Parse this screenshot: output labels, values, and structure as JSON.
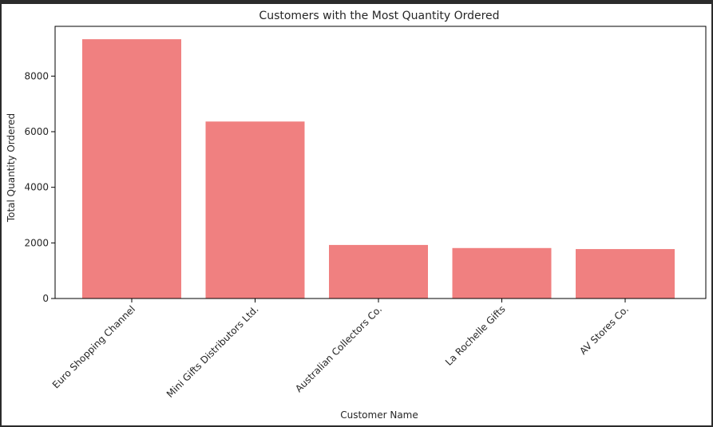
{
  "chart_data": {
    "type": "bar",
    "title": "Customers with the Most Quantity Ordered",
    "xlabel": "Customer Name",
    "ylabel": "Total Quantity Ordered",
    "categories": [
      "Euro Shopping Channel",
      "Mini Gifts Distributors Ltd.",
      "Australian Collectors  Co.",
      "La Rochelle Gifts",
      "AV Stores  Co."
    ],
    "values": [
      9327,
      6366,
      1926,
      1815,
      1778
    ],
    "ylim": [
      0,
      9790
    ],
    "yticks": [
      0,
      2000,
      4000,
      6000,
      8000
    ],
    "ytick_labels": [
      "0",
      "2000",
      "4000",
      "6000",
      "8000"
    ],
    "bar_color": "#f08080",
    "grid": false,
    "legend": "none"
  }
}
